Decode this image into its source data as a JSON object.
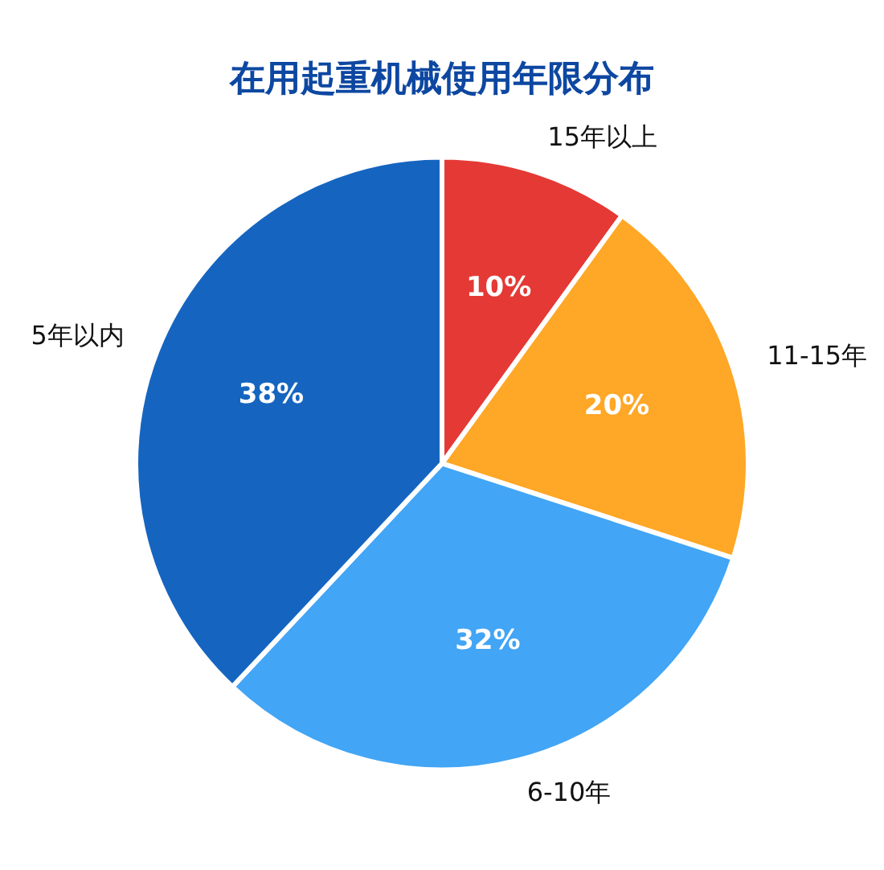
{
  "chart_data": {
    "type": "pie",
    "title": "在用起重机械使用年限分布",
    "categories": [
      "15年以上",
      "11-15年",
      "6-10年",
      "5年以内"
    ],
    "values": [
      10,
      20,
      32,
      38
    ],
    "colors": [
      "#e53935",
      "#ffa726",
      "#42a5f5",
      "#1565c0"
    ],
    "value_labels": [
      "10%",
      "20%",
      "32%",
      "38%"
    ],
    "legend": false
  }
}
